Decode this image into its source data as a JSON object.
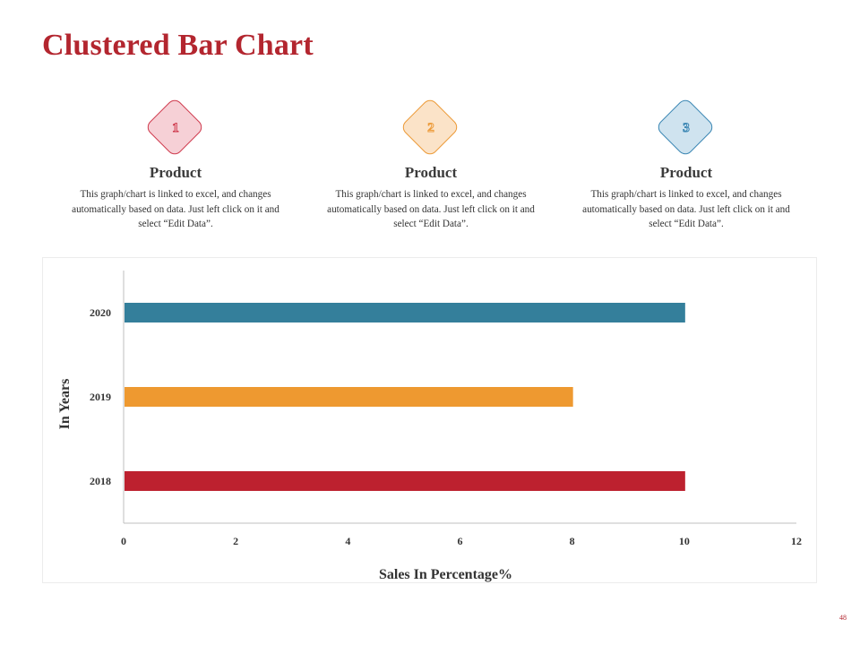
{
  "slide": {
    "title": "Clustered Bar Chart",
    "page_number": "48"
  },
  "cards": [
    {
      "number": "1",
      "heading": "Product",
      "text": "This graph/chart is linked to excel, and changes automatically based on data. Just left click on it and select “Edit Data”.",
      "fill": "#f6d0d6",
      "stroke": "#cf3a4d"
    },
    {
      "number": "2",
      "heading": "Product",
      "text": "This graph/chart is linked to excel, and changes automatically based on data. Just left click on it and select “Edit Data”.",
      "fill": "#fbe3c8",
      "stroke": "#ec9a37"
    },
    {
      "number": "3",
      "heading": "Product",
      "text": "This graph/chart is linked to excel, and changes automatically based on data. Just left click on it and select “Edit Data”.",
      "fill": "#cfe3ef",
      "stroke": "#3a86b3"
    }
  ],
  "chart_data": {
    "type": "bar",
    "orientation": "horizontal",
    "categories": [
      "2018",
      "2019",
      "2020"
    ],
    "values": [
      10,
      8,
      10
    ],
    "colors": [
      "#bd212f",
      "#ee9930",
      "#347f9b"
    ],
    "xlabel": "Sales In Percentage%",
    "ylabel": "In Years",
    "xlim": [
      0,
      12
    ],
    "xticks": [
      "0",
      "2",
      "4",
      "6",
      "8",
      "10",
      "12"
    ],
    "grid": false,
    "legend": "none"
  }
}
